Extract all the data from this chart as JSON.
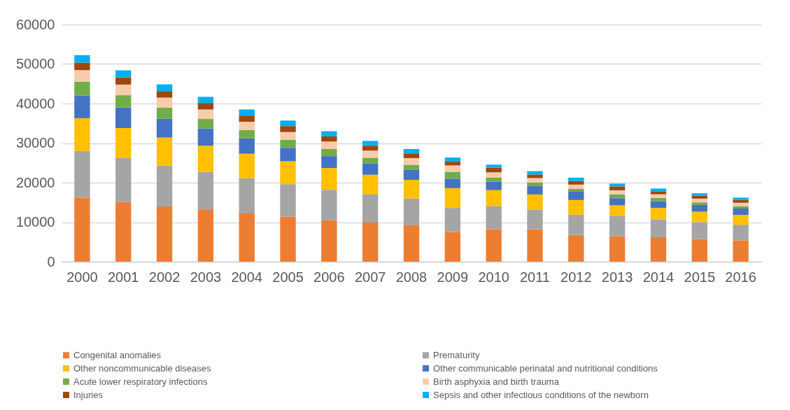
{
  "chart_data": {
    "type": "bar",
    "stacked": true,
    "grid": "y",
    "legend": "bottom",
    "categories": [
      "2000",
      "2001",
      "2002",
      "2003",
      "2004",
      "2005",
      "2006",
      "2007",
      "2008",
      "2009",
      "2010",
      "2011",
      "2012",
      "2013",
      "2014",
      "2015",
      "2016"
    ],
    "ylim": [
      0,
      60000
    ],
    "yticks": [
      0,
      10000,
      20000,
      30000,
      40000,
      50000,
      60000
    ],
    "series": [
      {
        "name": "Congenital anomalies",
        "color": "#ed7d31",
        "values": [
          16200,
          15100,
          14000,
          13100,
          12200,
          11400,
          10500,
          9900,
          9200,
          7500,
          8200,
          8200,
          6800,
          6450,
          6200,
          5750,
          5400
        ]
      },
      {
        "name": "Prematurity",
        "color": "#a5a5a5",
        "values": [
          11800,
          11100,
          10300,
          9600,
          8900,
          8200,
          7700,
          7100,
          6800,
          6100,
          5800,
          5000,
          5100,
          5150,
          4500,
          4250,
          3950
        ]
      },
      {
        "name": "Other noncommunicable diseases",
        "color": "#ffc000",
        "values": [
          8300,
          7600,
          7100,
          6600,
          6200,
          5800,
          5500,
          5000,
          4700,
          5000,
          4100,
          3800,
          3700,
          2650,
          2900,
          2650,
          2500
        ]
      },
      {
        "name": "Other communicable perinatal and nutritional conditions",
        "color": "#4472c4",
        "values": [
          5700,
          5200,
          4800,
          4400,
          3900,
          3400,
          3000,
          2900,
          2600,
          2400,
          2100,
          2100,
          2100,
          1800,
          1700,
          1700,
          1600
        ]
      },
      {
        "name": "Acute lower respiratory infections",
        "color": "#70ad47",
        "values": [
          3550,
          3100,
          2800,
          2400,
          2100,
          2000,
          1800,
          1400,
          1200,
          1650,
          1100,
          950,
          700,
          950,
          800,
          650,
          600
        ]
      },
      {
        "name": "Birth asphyxia and birth trauma",
        "color": "#f8cbad",
        "values": [
          2900,
          2700,
          2500,
          2400,
          2100,
          2000,
          1900,
          1800,
          1700,
          1700,
          1300,
          1100,
          1100,
          1050,
          950,
          950,
          850
        ]
      },
      {
        "name": "Injuries",
        "color": "#9e480e",
        "values": [
          1900,
          1800,
          1650,
          1650,
          1550,
          1500,
          1300,
          1250,
          1200,
          950,
          1200,
          900,
          900,
          1000,
          750,
          750,
          750
        ]
      },
      {
        "name": "Sepsis and other infectious conditions of the newborn",
        "color": "#00b0f0",
        "values": [
          1900,
          1800,
          1700,
          1550,
          1550,
          1400,
          1300,
          1200,
          1100,
          1050,
          750,
          850,
          850,
          700,
          700,
          600,
          550
        ]
      }
    ]
  }
}
